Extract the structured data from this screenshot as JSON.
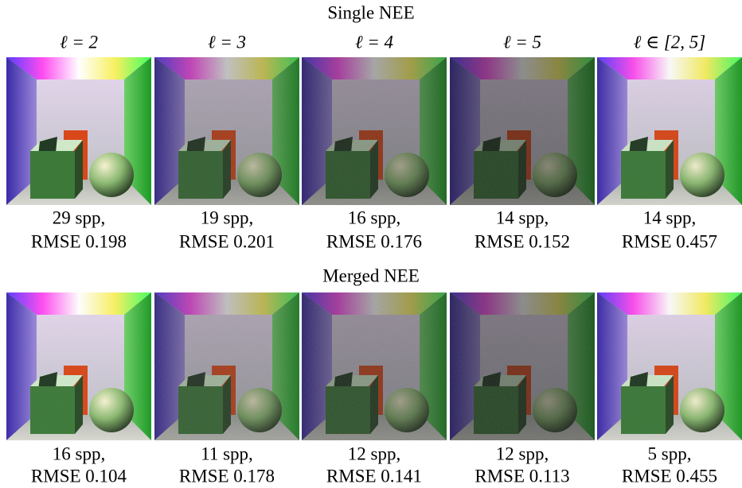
{
  "column_headers": [
    "ℓ = 2",
    "ℓ = 3",
    "ℓ = 4",
    "ℓ = 5",
    "ℓ ∈ [2, 5]"
  ],
  "sections": [
    {
      "title": "Single NEE",
      "captions": [
        [
          "29 spp,",
          "RMSE 0.198"
        ],
        [
          "19 spp,",
          "RMSE 0.201"
        ],
        [
          "16 spp,",
          "RMSE 0.176"
        ],
        [
          "14 spp,",
          "RMSE 0.152"
        ],
        [
          "14 spp,",
          "RMSE 0.457"
        ]
      ]
    },
    {
      "title": "Merged NEE",
      "captions": [
        [
          "16 spp,",
          "RMSE 0.104"
        ],
        [
          "11 spp,",
          "RMSE 0.178"
        ],
        [
          "12 spp,",
          "RMSE 0.141"
        ],
        [
          "12 spp,",
          "RMSE 0.113"
        ],
        [
          "5 spp,",
          "RMSE 0.455"
        ]
      ]
    }
  ]
}
